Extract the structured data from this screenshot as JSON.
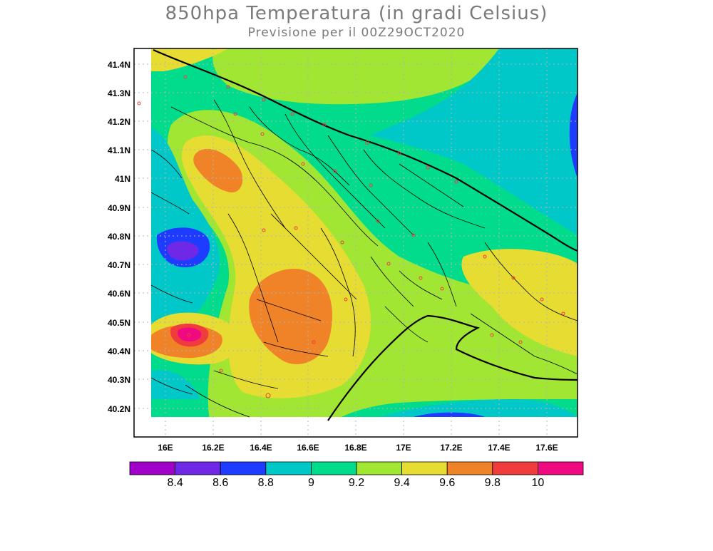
{
  "header": {
    "title": "850hpa Temperatura (in gradi Celsius)",
    "subtitle": "Previsione per il  00Z29OCT2020"
  },
  "map": {
    "lon_range": [
      15.87,
      17.74
    ],
    "lat_range": [
      40.1,
      41.45
    ],
    "lat_ticks": [
      "41.4N",
      "41.3N",
      "41.2N",
      "41.1N",
      "41N",
      "40.9N",
      "40.8N",
      "40.7N",
      "40.6N",
      "40.5N",
      "40.4N",
      "40.3N",
      "40.2N"
    ],
    "lon_ticks": [
      "16E",
      "16.2E",
      "16.4E",
      "16.6E",
      "16.8E",
      "17E",
      "17.2E",
      "17.4E",
      "17.6E"
    ]
  },
  "colorbar": {
    "colors": [
      "#a000c8",
      "#6e28e6",
      "#1e3cff",
      "#00c8c8",
      "#00dc8c",
      "#a0e632",
      "#e6dc32",
      "#f08228",
      "#f03c3c",
      "#f00a82"
    ],
    "labels": [
      "8.4",
      "8.6",
      "8.8",
      "9",
      "9.2",
      "9.4",
      "9.6",
      "9.8",
      "10"
    ]
  },
  "colors": {
    "land_bg": "#00dc8c",
    "grid": "#b4b4b4",
    "coast": "#000000",
    "town": "#f03c3c"
  }
}
